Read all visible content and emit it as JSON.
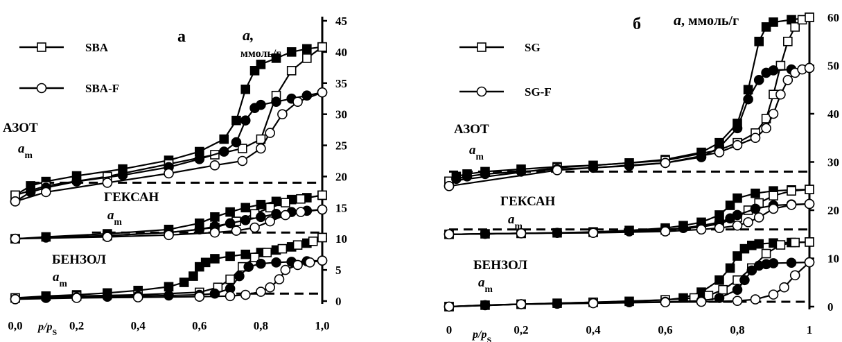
{
  "chart_data": [
    {
      "type": "line",
      "panel_label": "а",
      "ylabel": "a,",
      "ylabel_unit": "ммоль/г",
      "xlabel": "p/p",
      "xlabel_sub": "S",
      "xlim": [
        0,
        1
      ],
      "ylim": [
        0,
        45
      ],
      "x_ticks": [
        "0,0",
        "0,2",
        "0,4",
        "0,6",
        "0,8",
        "1,0"
      ],
      "y_ticks": [
        "0",
        "5",
        "10",
        "15",
        "20",
        "25",
        "30",
        "35",
        "40",
        "45"
      ],
      "legend": [
        {
          "label": "SBA",
          "marker": "square"
        },
        {
          "label": "SBA-F",
          "marker": "circle"
        }
      ],
      "annotations": [
        {
          "text": "АЗОТ",
          "am": "a",
          "am_sub": "m",
          "am_level": 19
        },
        {
          "text": "ГЕКСАН",
          "am": "a",
          "am_sub": "m",
          "am_level": 11
        },
        {
          "text": "БЕНЗОЛ",
          "am": "a",
          "am_sub": "m",
          "am_level": 1.2
        }
      ],
      "series": [
        {
          "name": "SBA",
          "group": "АЗОТ",
          "marker": "square",
          "x": [
            0.0,
            0.05,
            0.1,
            0.2,
            0.35,
            0.5,
            0.6,
            0.68,
            0.72,
            0.75,
            0.78,
            0.8,
            0.85,
            0.9,
            0.95,
            1.0
          ],
          "y": [
            17,
            18.5,
            19.2,
            20.1,
            21.2,
            22.6,
            24,
            26,
            29,
            34,
            37,
            38,
            39,
            40,
            40.5,
            40.8
          ]
        },
        {
          "name": "SBA",
          "group": "АЗОТ",
          "marker": "square",
          "x": [
            0.0,
            0.1,
            0.3,
            0.5,
            0.65,
            0.74,
            0.8,
            0.85,
            0.9,
            0.95,
            1.0
          ],
          "y": [
            17,
            18.5,
            20,
            22,
            23.5,
            24.5,
            26,
            33,
            37,
            39,
            40.8
          ]
        },
        {
          "name": "SBA-F",
          "group": "АЗОТ",
          "marker": "circle",
          "x": [
            0.0,
            0.05,
            0.1,
            0.2,
            0.35,
            0.5,
            0.6,
            0.68,
            0.72,
            0.75,
            0.78,
            0.8,
            0.85,
            0.9,
            0.95,
            1.0
          ],
          "y": [
            16,
            17.5,
            18.2,
            19.2,
            20.2,
            21.5,
            22.8,
            24,
            25.5,
            29,
            31,
            31.5,
            32,
            32.5,
            33,
            33.5
          ]
        },
        {
          "name": "SBA-F",
          "group": "АЗОТ",
          "marker": "circle",
          "x": [
            0.0,
            0.1,
            0.3,
            0.5,
            0.65,
            0.74,
            0.8,
            0.83,
            0.87,
            0.92,
            1.0
          ],
          "y": [
            16,
            17.5,
            19,
            20.5,
            21.8,
            22.5,
            24.5,
            27,
            30,
            32,
            33.5
          ]
        },
        {
          "name": "SBA",
          "group": "ГЕКСАН",
          "marker": "square",
          "x": [
            0.0,
            0.1,
            0.3,
            0.5,
            0.6,
            0.65,
            0.7,
            0.75,
            0.8,
            0.85,
            0.9,
            0.95,
            1.0
          ],
          "y": [
            10,
            10.3,
            10.8,
            11.5,
            12.5,
            13.5,
            14.3,
            15,
            15.5,
            16,
            16.3,
            16.6,
            17
          ]
        },
        {
          "name": "SBA",
          "group": "ГЕКСАН",
          "marker": "square",
          "x": [
            0.0,
            0.3,
            0.5,
            0.65,
            0.72,
            0.78,
            0.83,
            0.88,
            0.93,
            1.0
          ],
          "y": [
            10,
            10.5,
            11,
            11.8,
            12.8,
            14,
            15,
            15.8,
            16.4,
            17
          ]
        },
        {
          "name": "SBA-F",
          "group": "ГЕКСАН",
          "marker": "circle",
          "x": [
            0.0,
            0.1,
            0.3,
            0.5,
            0.6,
            0.65,
            0.7,
            0.75,
            0.8,
            0.85,
            0.9,
            0.95,
            1.0
          ],
          "y": [
            10,
            10.2,
            10.5,
            11,
            11.5,
            12,
            12.5,
            13,
            13.5,
            14,
            14.3,
            14.5,
            14.7
          ]
        },
        {
          "name": "SBA-F",
          "group": "ГЕКСАН",
          "marker": "circle",
          "x": [
            0.0,
            0.3,
            0.5,
            0.65,
            0.72,
            0.78,
            0.83,
            0.88,
            0.93,
            1.0
          ],
          "y": [
            10,
            10.3,
            10.6,
            11,
            11.3,
            11.8,
            12.8,
            13.8,
            14.3,
            14.7
          ]
        },
        {
          "name": "SBA",
          "group": "БЕНЗОЛ",
          "marker": "square",
          "x": [
            0.0,
            0.1,
            0.2,
            0.3,
            0.4,
            0.5,
            0.55,
            0.58,
            0.6,
            0.62,
            0.65,
            0.7,
            0.75,
            0.8,
            0.85,
            0.9,
            0.95,
            1.0
          ],
          "y": [
            0.5,
            0.8,
            1,
            1.3,
            1.7,
            2.3,
            3,
            4,
            5.5,
            6.2,
            6.8,
            7.2,
            7.5,
            7.8,
            8.2,
            8.7,
            9.3,
            10.2
          ]
        },
        {
          "name": "SBA",
          "group": "БЕНЗОЛ",
          "marker": "square",
          "x": [
            0.0,
            0.2,
            0.4,
            0.6,
            0.66,
            0.7,
            0.74,
            0.78,
            0.82,
            0.87,
            0.92,
            0.97,
            1.0
          ],
          "y": [
            0.5,
            0.8,
            1,
            1.4,
            2.2,
            3.5,
            5.5,
            7,
            7.8,
            8.4,
            9,
            9.6,
            10.2
          ]
        },
        {
          "name": "SBA-F",
          "group": "БЕНЗОЛ",
          "marker": "circle",
          "x": [
            0.0,
            0.1,
            0.2,
            0.3,
            0.4,
            0.5,
            0.6,
            0.65,
            0.7,
            0.73,
            0.76,
            0.8,
            0.85,
            0.9,
            0.95,
            1.0
          ],
          "y": [
            0.3,
            0.5,
            0.6,
            0.7,
            0.8,
            0.9,
            1,
            1.2,
            2,
            4,
            5.5,
            6,
            6.2,
            6.3,
            6.4,
            6.5
          ]
        },
        {
          "name": "SBA-F",
          "group": "БЕНЗОЛ",
          "marker": "circle",
          "x": [
            0.0,
            0.2,
            0.4,
            0.6,
            0.7,
            0.75,
            0.8,
            0.83,
            0.86,
            0.88,
            0.92,
            0.96,
            1.0
          ],
          "y": [
            0.3,
            0.5,
            0.6,
            0.7,
            0.8,
            1,
            1.5,
            2.2,
            3.5,
            5,
            5.8,
            6.2,
            6.5
          ]
        }
      ]
    },
    {
      "type": "line",
      "panel_label": "б",
      "ylabel": "a,",
      "ylabel_unit": "ммоль/г",
      "xlabel": "p/p",
      "xlabel_sub": "S",
      "xlim": [
        0,
        1
      ],
      "ylim": [
        0,
        60
      ],
      "x_ticks": [
        "0",
        "0,2",
        "0,4",
        "0,6",
        "0,8",
        "1"
      ],
      "y_ticks": [
        "0",
        "10",
        "20",
        "30",
        "40",
        "50",
        "60"
      ],
      "legend": [
        {
          "label": "SG",
          "marker": "square"
        },
        {
          "label": "SG-F",
          "marker": "circle"
        }
      ],
      "annotations": [
        {
          "text": "АЗОТ",
          "am": "a",
          "am_sub": "m",
          "am_level": 28
        },
        {
          "text": "ГЕКСАН",
          "am": "a",
          "am_sub": "m",
          "am_level": 16
        },
        {
          "text": "БЕНЗОЛ",
          "am": "a",
          "am_sub": "m",
          "am_level": 1
        }
      ],
      "series": [
        {
          "name": "SG",
          "group": "АЗОТ",
          "marker": "square",
          "x": [
            0.0,
            0.02,
            0.05,
            0.1,
            0.2,
            0.3,
            0.4,
            0.5,
            0.6,
            0.7,
            0.75,
            0.8,
            0.83,
            0.86,
            0.88,
            0.9,
            0.95,
            1.0
          ],
          "y": [
            26,
            27,
            27.5,
            28,
            28.5,
            29,
            29.3,
            29.8,
            30.5,
            32,
            34,
            38,
            45,
            55,
            58,
            59,
            59.5,
            60
          ]
        },
        {
          "name": "SG",
          "group": "АЗОТ",
          "marker": "square",
          "x": [
            0.0,
            0.3,
            0.6,
            0.75,
            0.8,
            0.85,
            0.88,
            0.9,
            0.92,
            0.94,
            0.96,
            0.98,
            1.0
          ],
          "y": [
            26,
            28.8,
            30.3,
            32.5,
            34,
            36,
            39,
            44,
            50,
            55,
            58,
            59.5,
            60
          ]
        },
        {
          "name": "SG-F",
          "group": "АЗОТ",
          "marker": "circle",
          "x": [
            0.0,
            0.02,
            0.05,
            0.1,
            0.2,
            0.3,
            0.4,
            0.5,
            0.6,
            0.7,
            0.75,
            0.8,
            0.83,
            0.86,
            0.88,
            0.9,
            0.95,
            1.0
          ],
          "y": [
            25,
            26.5,
            27,
            27.5,
            28,
            28.5,
            28.8,
            29.2,
            29.8,
            31,
            33,
            37,
            43,
            47,
            48.5,
            49,
            49.2,
            49.5
          ]
        },
        {
          "name": "SG-F",
          "group": "АЗОТ",
          "marker": "circle",
          "x": [
            0.0,
            0.3,
            0.6,
            0.75,
            0.8,
            0.85,
            0.88,
            0.9,
            0.92,
            0.94,
            0.96,
            0.98,
            1.0
          ],
          "y": [
            25,
            28.3,
            29.8,
            32,
            33.5,
            35,
            37,
            40,
            44,
            47,
            48.5,
            49.2,
            49.5
          ]
        },
        {
          "name": "SG",
          "group": "ГЕКСАН",
          "marker": "square",
          "x": [
            0.0,
            0.1,
            0.2,
            0.3,
            0.4,
            0.5,
            0.6,
            0.65,
            0.7,
            0.75,
            0.78,
            0.8,
            0.85,
            0.9,
            0.95,
            1.0
          ],
          "y": [
            15,
            15.1,
            15.2,
            15.3,
            15.5,
            15.8,
            16.3,
            16.8,
            17.5,
            19,
            21,
            22.5,
            23.5,
            24,
            24.2,
            24.3
          ]
        },
        {
          "name": "SG",
          "group": "ГЕКСАН",
          "marker": "square",
          "x": [
            0.0,
            0.2,
            0.4,
            0.6,
            0.7,
            0.75,
            0.8,
            0.83,
            0.86,
            0.9,
            0.95,
            1.0
          ],
          "y": [
            15,
            15.2,
            15.4,
            15.9,
            16.5,
            17.2,
            18.5,
            20,
            21.5,
            23,
            24,
            24.3
          ]
        },
        {
          "name": "SG-F",
          "group": "ГЕКСАН",
          "marker": "circle",
          "x": [
            0.0,
            0.1,
            0.2,
            0.3,
            0.4,
            0.5,
            0.6,
            0.65,
            0.7,
            0.75,
            0.78,
            0.8,
            0.85,
            0.9,
            0.95,
            1.0
          ],
          "y": [
            15,
            15.1,
            15.2,
            15.3,
            15.4,
            15.6,
            16,
            16.3,
            16.8,
            17.5,
            18.3,
            19,
            20.3,
            21,
            21.2,
            21.3
          ]
        },
        {
          "name": "SG-F",
          "group": "ГЕКСАН",
          "marker": "circle",
          "x": [
            0.0,
            0.2,
            0.4,
            0.6,
            0.7,
            0.75,
            0.8,
            0.83,
            0.86,
            0.9,
            0.95,
            1.0
          ],
          "y": [
            15,
            15.2,
            15.3,
            15.6,
            16,
            16.3,
            16.8,
            17.5,
            18.5,
            20.3,
            21.1,
            21.3
          ]
        },
        {
          "name": "SG",
          "group": "БЕНЗОЛ",
          "marker": "square",
          "x": [
            0.0,
            0.1,
            0.2,
            0.3,
            0.4,
            0.5,
            0.6,
            0.65,
            0.7,
            0.75,
            0.78,
            0.8,
            0.82,
            0.84,
            0.86,
            0.9,
            0.95,
            1.0
          ],
          "y": [
            0,
            0.3,
            0.5,
            0.7,
            0.9,
            1.1,
            1.4,
            1.8,
            3,
            5.5,
            8,
            10.5,
            12,
            12.7,
            13,
            13.2,
            13.3,
            13.4
          ]
        },
        {
          "name": "SG",
          "group": "БЕНЗОЛ",
          "marker": "square",
          "x": [
            0.0,
            0.2,
            0.4,
            0.6,
            0.68,
            0.72,
            0.76,
            0.8,
            0.84,
            0.88,
            0.92,
            0.96,
            1.0
          ],
          "y": [
            0,
            0.5,
            0.9,
            1.4,
            1.8,
            2.3,
            3.5,
            5.5,
            8,
            11,
            12.8,
            13.3,
            13.4
          ]
        },
        {
          "name": "SG-F",
          "group": "БЕНЗОЛ",
          "marker": "circle",
          "x": [
            0.0,
            0.1,
            0.2,
            0.3,
            0.4,
            0.5,
            0.6,
            0.7,
            0.75,
            0.8,
            0.82,
            0.84,
            0.86,
            0.88,
            0.9,
            0.95,
            1.0
          ],
          "y": [
            0,
            0.3,
            0.5,
            0.6,
            0.8,
            0.9,
            1,
            1.2,
            1.8,
            3.5,
            5.5,
            7.5,
            8.5,
            8.8,
            9,
            9.1,
            9.2
          ]
        },
        {
          "name": "SG-F",
          "group": "БЕНЗОЛ",
          "marker": "circle",
          "x": [
            0.0,
            0.2,
            0.4,
            0.6,
            0.7,
            0.8,
            0.85,
            0.9,
            0.93,
            0.96,
            1.0
          ],
          "y": [
            0,
            0.5,
            0.7,
            0.9,
            1,
            1.2,
            1.5,
            2.5,
            4,
            6.5,
            9.2
          ]
        }
      ]
    }
  ]
}
